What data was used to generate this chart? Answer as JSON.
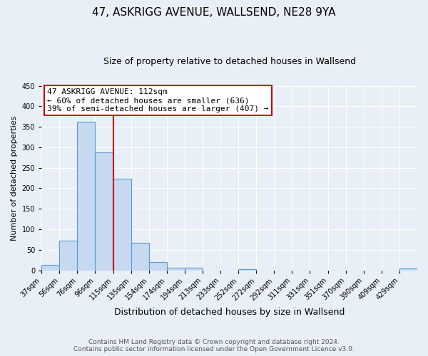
{
  "title": "47, ASKRIGG AVENUE, WALLSEND, NE28 9YA",
  "subtitle": "Size of property relative to detached houses in Wallsend",
  "xlabel": "Distribution of detached houses by size in Wallsend",
  "ylabel": "Number of detached properties",
  "bin_labels": [
    "37sqm",
    "56sqm",
    "76sqm",
    "96sqm",
    "115sqm",
    "135sqm",
    "154sqm",
    "174sqm",
    "194sqm",
    "213sqm",
    "233sqm",
    "252sqm",
    "272sqm",
    "292sqm",
    "311sqm",
    "331sqm",
    "351sqm",
    "370sqm",
    "390sqm",
    "409sqm",
    "429sqm"
  ],
  "bin_counts": [
    14,
    72,
    363,
    288,
    224,
    67,
    21,
    6,
    6,
    0,
    0,
    3,
    0,
    0,
    0,
    0,
    0,
    0,
    0,
    0,
    4
  ],
  "bar_color": "#c6d9f1",
  "bar_edge_color": "#5b9bd5",
  "property_line_x": 4,
  "property_line_label": "47 ASKRIGG AVENUE: 112sqm",
  "annotation_line1": "← 60% of detached houses are smaller (636)",
  "annotation_line2": "39% of semi-detached houses are larger (407) →",
  "annotation_box_facecolor": "#ffffff",
  "annotation_box_edgecolor": "#cc0000",
  "vline_color": "#cc0000",
  "ylim": [
    0,
    450
  ],
  "yticks": [
    0,
    50,
    100,
    150,
    200,
    250,
    300,
    350,
    400,
    450
  ],
  "footer_line1": "Contains HM Land Registry data © Crown copyright and database right 2024.",
  "footer_line2": "Contains public sector information licensed under the Open Government Licence v3.0.",
  "bg_color": "#e8eff7",
  "plot_bg_color": "#e8eff7",
  "grid_color": "#ffffff",
  "title_fontsize": 11,
  "subtitle_fontsize": 9,
  "ylabel_fontsize": 8,
  "xlabel_fontsize": 9,
  "tick_fontsize": 7,
  "annotation_fontsize": 8,
  "footer_fontsize": 6.5
}
